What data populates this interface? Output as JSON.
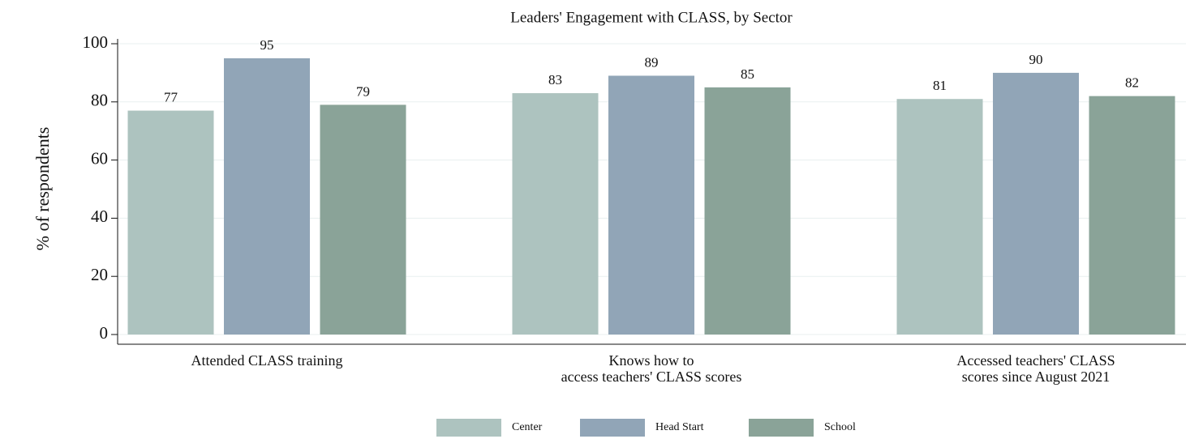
{
  "chart_data": {
    "type": "bar",
    "title": "Leaders' Engagement with CLASS, by Sector",
    "y_label": "% of respondents",
    "categories": [
      [
        "Attended CLASS training"
      ],
      [
        "Knows how to",
        "access teachers' CLASS scores"
      ],
      [
        "Accessed teachers' CLASS",
        "scores since August 2021"
      ]
    ],
    "series": [
      {
        "name": "Center",
        "color": "#adc3bf",
        "values": [
          77,
          83,
          81
        ]
      },
      {
        "name": "Head Start",
        "color": "#91a5b7",
        "values": [
          95,
          89,
          90
        ]
      },
      {
        "name": "School",
        "color": "#8aa398",
        "values": [
          79,
          85,
          82
        ]
      }
    ],
    "ylim": [
      0,
      100
    ],
    "yticks": [
      0,
      20,
      40,
      60,
      80,
      100
    ],
    "grid": true,
    "legend": "bottom"
  }
}
